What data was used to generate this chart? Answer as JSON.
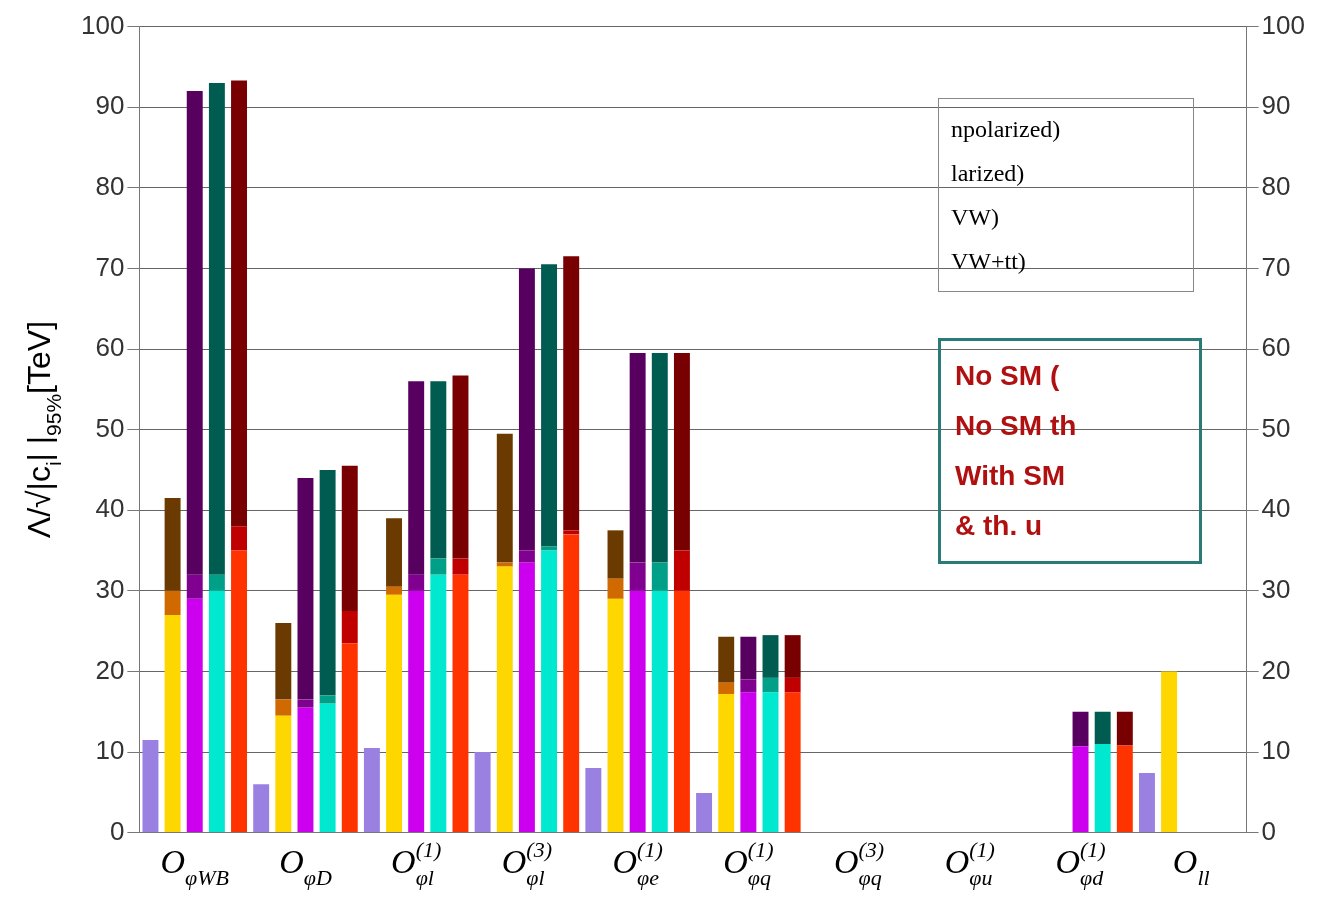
{
  "chart_data": {
    "type": "bar",
    "stacked": true,
    "categories": [
      null,
      null,
      "O$_{φWB}$",
      null,
      null,
      null,
      null,
      "O$_{φD}$",
      null,
      null,
      null,
      null,
      "O$^{(1)}$$_{φl}$",
      null,
      null,
      null,
      null,
      "O$^{(3)}$$_{φl}$",
      null,
      null,
      null,
      null,
      "O$^{(1)}$$_{φe}$",
      null,
      null,
      null,
      null,
      "O$^{(1)}$$_{φq}$",
      null,
      null,
      null,
      null,
      "O$^{(3)}$$_{φq}$",
      null,
      null,
      null,
      null,
      "O$^{(1)}$$_{φu}$",
      null,
      null,
      null,
      null,
      "O$^{(1)}$$_{φd}$",
      null,
      null,
      null,
      null,
      "O$_{ll}$",
      null,
      null
    ],
    "series": [
      {
        "values": [
          11.5,
          27,
          29,
          30,
          35,
          6,
          14.5,
          15.5,
          16,
          23.5,
          10.5,
          29.5,
          30,
          32,
          32,
          10,
          33,
          33.5,
          35,
          37,
          8,
          29,
          30,
          30,
          30,
          4.9,
          17.2,
          17.4,
          17.4,
          17.4,
          null,
          null,
          null,
          null,
          null,
          null,
          null,
          null,
          null,
          null,
          null,
          null,
          10.7,
          11,
          10.8,
          7.4,
          20,
          null,
          null,
          null
        ],
        "colors": [
          "#9a80e0",
          "#ffd700",
          "#cc00ee",
          "#00e8d0",
          "#ff3300",
          "#9a80e0",
          "#ffd700",
          "#cc00ee",
          "#00e8d0",
          "#ff3300",
          "#9a80e0",
          "#ffd700",
          "#cc00ee",
          "#00e8d0",
          "#ff3300",
          "#9a80e0",
          "#ffd700",
          "#cc00ee",
          "#00e8d0",
          "#ff3300",
          "#9a80e0",
          "#ffd700",
          "#cc00ee",
          "#00e8d0",
          "#ff3300",
          "#9a80e0",
          "#ffd700",
          "#cc00ee",
          "#00e8d0",
          "#ff3300",
          "#9a80e0",
          "#ffd700",
          "#cc00ee",
          "#00e8d0",
          "#ff3300",
          "#9a80e0",
          "#ffd700",
          "#cc00ee",
          "#00e8d0",
          "#ff3300",
          "#9a80e0",
          "#ffd700",
          "#cc00ee",
          "#00e8d0",
          "#ff3300",
          "#9a80e0",
          "#ffd700",
          "#cc00ee",
          "#00e8d0",
          "#ff3300"
        ]
      },
      {
        "values": [
          null,
          3,
          3,
          2,
          3,
          null,
          2,
          1,
          1,
          4,
          null,
          1,
          2,
          2,
          2,
          null,
          0.5,
          1.5,
          0.5,
          0.5,
          null,
          2.5,
          3.5,
          3.5,
          5,
          null,
          1.4,
          1.6,
          1.8,
          1.8,
          null,
          null,
          null,
          null,
          null,
          null,
          null,
          null,
          null,
          null,
          null,
          null,
          null,
          null,
          null,
          null,
          null,
          null,
          null,
          null
        ],
        "colors": [
          "#9a80e0",
          "#d06a00",
          "#800090",
          "#00a088",
          "#c00000",
          "#9a80e0",
          "#d06a00",
          "#800090",
          "#00a088",
          "#c00000",
          "#9a80e0",
          "#d06a00",
          "#800090",
          "#00a088",
          "#c00000",
          "#9a80e0",
          "#d06a00",
          "#800090",
          "#00a088",
          "#c00000",
          "#9a80e0",
          "#d06a00",
          "#800090",
          "#00a088",
          "#c00000",
          "#9a80e0",
          "#d06a00",
          "#800090",
          "#00a088",
          "#c00000",
          "#9a80e0",
          "#d06a00",
          "#800090",
          "#00a088",
          "#c00000",
          "#9a80e0",
          "#d06a00",
          "#800090",
          "#00a088",
          "#c00000",
          "#9a80e0",
          "#d06a00",
          "#800090",
          "#00a088",
          "#c00000",
          "#9a80e0",
          "#d06a00",
          "#800090",
          "#00a088",
          "#c00000"
        ]
      },
      {
        "values": [
          null,
          11.5,
          60,
          61,
          55.3,
          null,
          9.5,
          27.5,
          28,
          18,
          null,
          8.5,
          24,
          22,
          22.7,
          null,
          16,
          35,
          35,
          34,
          null,
          6,
          26,
          26,
          24.5,
          null,
          5.7,
          5.3,
          5.3,
          5.3,
          null,
          null,
          null,
          null,
          null,
          null,
          null,
          null,
          null,
          null,
          null,
          null,
          4.3,
          4,
          4.2,
          null,
          null,
          null,
          null,
          null
        ],
        "colors": [
          "#9a80e0",
          "#6b3a00",
          "#580060",
          "#005c50",
          "#780000",
          "#9a80e0",
          "#6b3a00",
          "#580060",
          "#005c50",
          "#780000",
          "#9a80e0",
          "#6b3a00",
          "#580060",
          "#005c50",
          "#780000",
          "#9a80e0",
          "#6b3a00",
          "#580060",
          "#005c50",
          "#780000",
          "#9a80e0",
          "#6b3a00",
          "#580060",
          "#005c50",
          "#780000",
          "#9a80e0",
          "#6b3a00",
          "#580060",
          "#005c50",
          "#780000",
          "#9a80e0",
          "#6b3a00",
          "#580060",
          "#005c50",
          "#780000",
          "#9a80e0",
          "#6b3a00",
          "#580060",
          "#005c50",
          "#780000",
          "#9a80e0",
          "#6b3a00",
          "#580060",
          "#005c50",
          "#780000",
          "#9a80e0",
          "#6b3a00",
          "#580060",
          "#005c50",
          "#780000"
        ]
      }
    ],
    "ylabel": "Λ/√|c$_{i}$| |$_{95%}$[TeV]",
    "ylim": [
      0,
      100
    ],
    "yticks": [
      0,
      10,
      20,
      30,
      40,
      50,
      60,
      70,
      80,
      90,
      100
    ],
    "y2lim": [
      0,
      100
    ],
    "y2ticks": [
      0,
      10,
      20,
      30,
      40,
      50,
      60,
      70,
      80,
      90,
      100
    ],
    "grid": "y",
    "annotations": [
      "npolarized)",
      "larized)",
      "VW)",
      "VW+tt)",
      "No SM (",
      "No SM th",
      "With SM",
      "& th. u"
    ]
  }
}
